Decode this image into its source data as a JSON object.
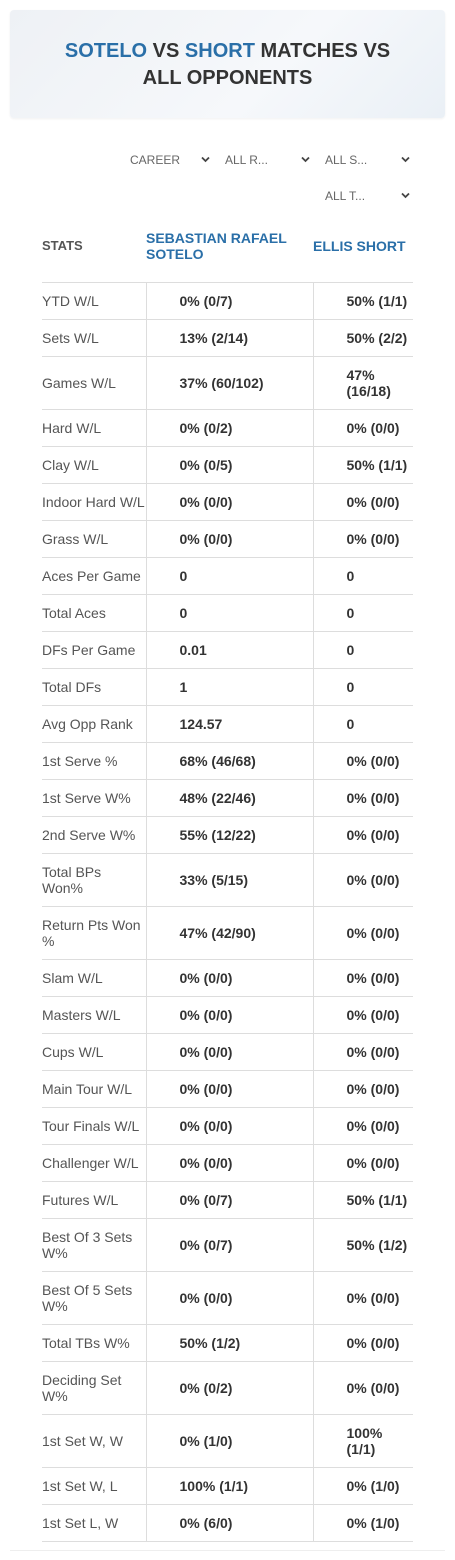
{
  "header": {
    "title": [
      "SOTELO",
      "VS",
      "SHORT",
      "MATCHES VS ALL OPPONENTS"
    ]
  },
  "filters": [
    "CAREER",
    "ALL R...",
    "ALL S...",
    "ALL T..."
  ],
  "table": {
    "columns": [
      "STATS",
      "SEBASTIAN RAFAEL SOTELO",
      "ELLIS SHORT"
    ],
    "rows": [
      [
        "YTD W/L",
        "0% (0/7)",
        "50% (1/1)"
      ],
      [
        "Sets W/L",
        "13% (2/14)",
        "50% (2/2)"
      ],
      [
        "Games W/L",
        "37% (60/102)",
        "47% (16/18)"
      ],
      [
        "Hard W/L",
        "0% (0/2)",
        "0% (0/0)"
      ],
      [
        "Clay W/L",
        "0% (0/5)",
        "50% (1/1)"
      ],
      [
        "Indoor Hard W/L",
        "0% (0/0)",
        "0% (0/0)"
      ],
      [
        "Grass W/L",
        "0% (0/0)",
        "0% (0/0)"
      ],
      [
        "Aces Per Game",
        "0",
        "0"
      ],
      [
        "Total Aces",
        "0",
        "0"
      ],
      [
        "DFs Per Game",
        "0.01",
        "0"
      ],
      [
        "Total DFs",
        "1",
        "0"
      ],
      [
        "Avg Opp Rank",
        "124.57",
        "0"
      ],
      [
        "1st Serve %",
        "68% (46/68)",
        "0% (0/0)"
      ],
      [
        "1st Serve W%",
        "48% (22/46)",
        "0% (0/0)"
      ],
      [
        "2nd Serve W%",
        "55% (12/22)",
        "0% (0/0)"
      ],
      [
        "Total BPs Won%",
        "33% (5/15)",
        "0% (0/0)"
      ],
      [
        "Return Pts Won %",
        "47% (42/90)",
        "0% (0/0)"
      ],
      [
        "Slam W/L",
        "0% (0/0)",
        "0% (0/0)"
      ],
      [
        "Masters W/L",
        "0% (0/0)",
        "0% (0/0)"
      ],
      [
        "Cups W/L",
        "0% (0/0)",
        "0% (0/0)"
      ],
      [
        "Main Tour W/L",
        "0% (0/0)",
        "0% (0/0)"
      ],
      [
        "Tour Finals W/L",
        "0% (0/0)",
        "0% (0/0)"
      ],
      [
        "Challenger W/L",
        "0% (0/0)",
        "0% (0/0)"
      ],
      [
        "Futures W/L",
        "0% (0/7)",
        "50% (1/1)"
      ],
      [
        "Best Of 3 Sets W%",
        "0% (0/7)",
        "50% (1/2)"
      ],
      [
        "Best Of 5 Sets W%",
        "0% (0/0)",
        "0% (0/0)"
      ],
      [
        "Total TBs W%",
        "50% (1/2)",
        "0% (0/0)"
      ],
      [
        "Deciding Set W%",
        "0% (0/2)",
        "0% (0/0)"
      ],
      [
        "1st Set W, W",
        "0% (1/0)",
        "100% (1/1)"
      ],
      [
        "1st Set W, L",
        "100% (1/1)",
        "0% (1/0)"
      ],
      [
        "1st Set L, W",
        "0% (6/0)",
        "0% (1/0)"
      ]
    ]
  }
}
